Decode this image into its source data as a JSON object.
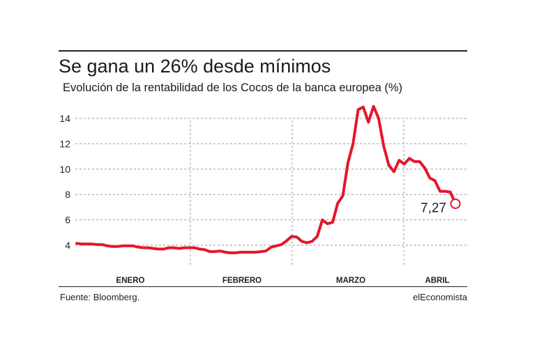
{
  "header": {
    "title": "Se gana un 26% desde mínimos",
    "subtitle": "Evolución de la rentabilidad de los Cocos de la banca europea (%)"
  },
  "footer": {
    "source": "Fuente: Bloomberg.",
    "brand": "elEconomista"
  },
  "colors": {
    "series": "#e3172b",
    "grid": "#9a9a9a",
    "text": "#222222"
  },
  "chart_data": {
    "type": "line",
    "title": "Se gana un 26% desde mínimos",
    "subtitle": "Evolución de la rentabilidad de los Cocos de la banca europea (%)",
    "xlabel": "",
    "ylabel": "",
    "ylim": [
      2.5,
      15.5
    ],
    "yticks": [
      4,
      6,
      8,
      10,
      12,
      14
    ],
    "grid": true,
    "months": [
      "ENERO",
      "FEBRERO",
      "MARZO",
      "ABRIL"
    ],
    "last_label": "7,27",
    "series": [
      {
        "values": [
          4.15,
          4.1,
          4.1,
          4.1,
          4.05,
          4.05,
          3.95,
          3.9,
          3.9,
          3.95,
          3.95,
          3.95,
          3.85,
          3.8,
          3.8,
          3.75,
          3.7,
          3.7,
          3.8,
          3.8,
          3.75,
          3.8,
          3.8,
          3.8,
          3.7,
          3.65,
          3.5,
          3.5,
          3.55,
          3.45,
          3.4,
          3.4,
          3.45,
          3.45,
          3.45,
          3.45,
          3.5,
          3.55,
          3.85,
          3.95,
          4.05,
          4.35,
          4.7,
          4.65,
          4.3,
          4.2,
          4.3,
          4.7,
          6.0,
          5.7,
          5.8,
          7.3,
          7.9,
          10.5,
          12.0,
          14.7,
          14.9,
          13.7,
          14.95,
          14.0,
          11.8,
          10.3,
          9.8,
          10.7,
          10.4,
          10.85,
          10.6,
          10.6,
          10.1,
          9.3,
          9.1,
          8.25,
          8.25,
          8.2,
          7.27
        ]
      }
    ]
  }
}
